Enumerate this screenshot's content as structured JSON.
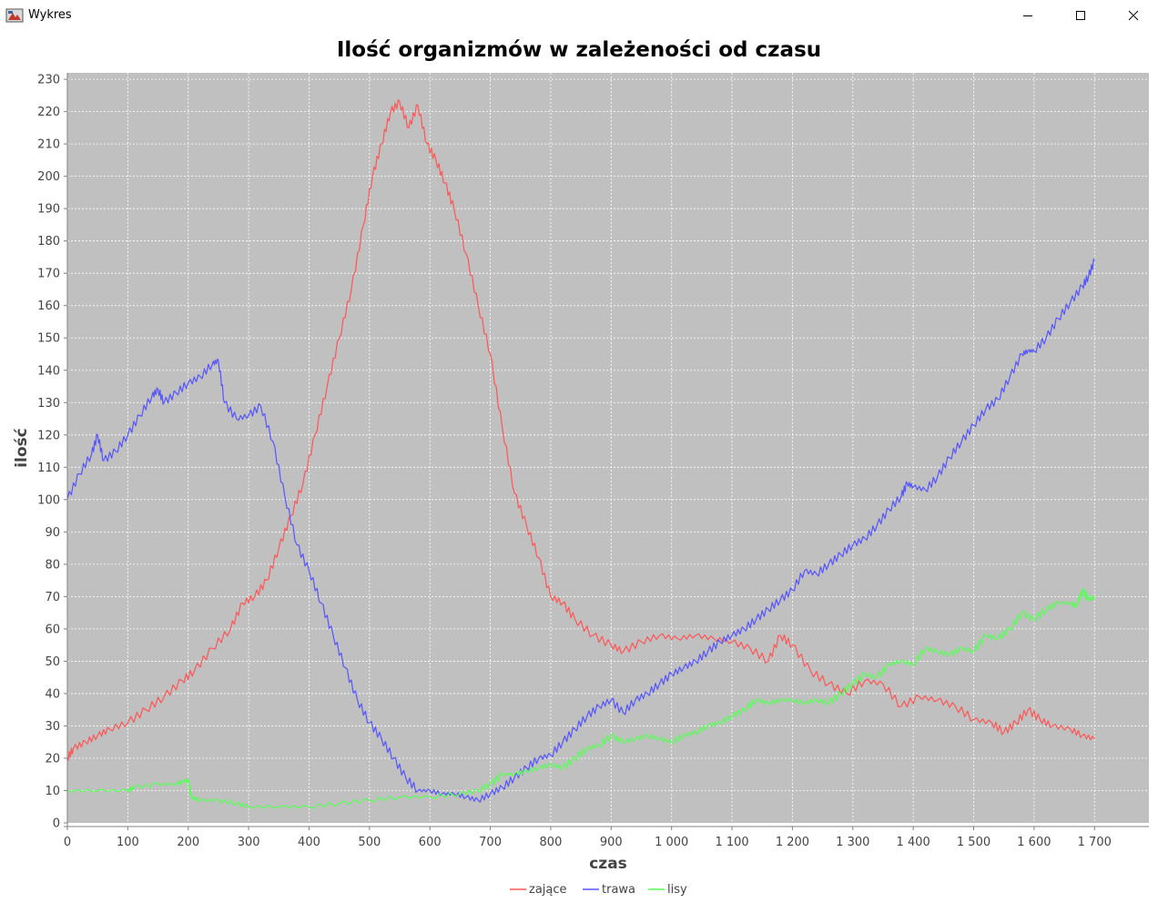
{
  "window": {
    "title": "Wykres",
    "icon": "java-app-icon",
    "controls": [
      "minimize-icon",
      "maximize-icon",
      "close-icon"
    ]
  },
  "colors": {
    "plot_background": "#c0c0c0",
    "gridline": "#ffffff",
    "zajace": "#ff5555",
    "trawa": "#5555ff",
    "lisy": "#55ff55"
  },
  "chart_data": {
    "type": "line",
    "title": "Ilość organizmów w zależeności od czasu",
    "xlabel": "czas",
    "ylabel": "ilość",
    "xlim": [
      0,
      1790
    ],
    "ylim": [
      0,
      232
    ],
    "x_ticks": [
      0,
      100,
      200,
      300,
      400,
      500,
      600,
      700,
      800,
      900,
      1000,
      1100,
      1200,
      1300,
      1400,
      1500,
      1600,
      1700
    ],
    "x_tick_labels": [
      "0",
      "100",
      "200",
      "300",
      "400",
      "500",
      "600",
      "700",
      "800",
      "900",
      "1 000",
      "1 100",
      "1 200",
      "1 300",
      "1 400",
      "1 500",
      "1 600",
      "1 700"
    ],
    "y_ticks": [
      0,
      10,
      20,
      30,
      40,
      50,
      60,
      70,
      80,
      90,
      100,
      110,
      120,
      130,
      140,
      150,
      160,
      170,
      180,
      190,
      200,
      210,
      220,
      230
    ],
    "y_tick_labels": [
      "0",
      "10",
      "20",
      "30",
      "40",
      "50",
      "60",
      "70",
      "80",
      "90",
      "100",
      "110",
      "120",
      "130",
      "140",
      "150",
      "160",
      "170",
      "180",
      "190",
      "200",
      "210",
      "220",
      "230"
    ],
    "grid": true,
    "legend_position": "bottom-center",
    "series": [
      {
        "name": "zające",
        "color": "#ff5555",
        "points": [
          [
            0,
            20
          ],
          [
            10,
            23
          ],
          [
            30,
            25
          ],
          [
            50,
            27
          ],
          [
            70,
            29
          ],
          [
            100,
            31
          ],
          [
            130,
            35
          ],
          [
            160,
            39
          ],
          [
            190,
            44
          ],
          [
            210,
            47
          ],
          [
            240,
            54
          ],
          [
            270,
            60
          ],
          [
            290,
            68
          ],
          [
            310,
            70
          ],
          [
            330,
            75
          ],
          [
            350,
            85
          ],
          [
            370,
            95
          ],
          [
            390,
            105
          ],
          [
            410,
            120
          ],
          [
            430,
            135
          ],
          [
            450,
            150
          ],
          [
            470,
            165
          ],
          [
            490,
            185
          ],
          [
            505,
            200
          ],
          [
            520,
            210
          ],
          [
            535,
            220
          ],
          [
            550,
            223
          ],
          [
            565,
            215
          ],
          [
            580,
            222
          ],
          [
            595,
            210
          ],
          [
            610,
            205
          ],
          [
            625,
            198
          ],
          [
            640,
            190
          ],
          [
            660,
            176
          ],
          [
            680,
            160
          ],
          [
            700,
            145
          ],
          [
            720,
            122
          ],
          [
            740,
            102
          ],
          [
            760,
            92
          ],
          [
            780,
            82
          ],
          [
            800,
            70
          ],
          [
            820,
            68
          ],
          [
            840,
            63
          ],
          [
            870,
            58
          ],
          [
            900,
            55
          ],
          [
            920,
            53
          ],
          [
            950,
            56
          ],
          [
            980,
            58
          ],
          [
            1010,
            57
          ],
          [
            1040,
            58
          ],
          [
            1070,
            57
          ],
          [
            1100,
            56
          ],
          [
            1130,
            54
          ],
          [
            1160,
            50
          ],
          [
            1180,
            58
          ],
          [
            1200,
            55
          ],
          [
            1230,
            47
          ],
          [
            1260,
            43
          ],
          [
            1290,
            40
          ],
          [
            1320,
            44
          ],
          [
            1350,
            43
          ],
          [
            1380,
            36
          ],
          [
            1410,
            39
          ],
          [
            1440,
            38
          ],
          [
            1470,
            36
          ],
          [
            1500,
            32
          ],
          [
            1530,
            31
          ],
          [
            1550,
            28
          ],
          [
            1570,
            31
          ],
          [
            1590,
            35
          ],
          [
            1610,
            32
          ],
          [
            1630,
            30
          ],
          [
            1660,
            29
          ],
          [
            1680,
            27
          ],
          [
            1700,
            26
          ]
        ]
      },
      {
        "name": "trawa",
        "color": "#5555ff",
        "points": [
          [
            0,
            100
          ],
          [
            20,
            108
          ],
          [
            40,
            114
          ],
          [
            50,
            120
          ],
          [
            60,
            112
          ],
          [
            80,
            115
          ],
          [
            100,
            120
          ],
          [
            120,
            126
          ],
          [
            140,
            132
          ],
          [
            150,
            134
          ],
          [
            160,
            130
          ],
          [
            180,
            133
          ],
          [
            200,
            136
          ],
          [
            220,
            138
          ],
          [
            240,
            142
          ],
          [
            250,
            143
          ],
          [
            260,
            130
          ],
          [
            280,
            125
          ],
          [
            300,
            126
          ],
          [
            320,
            129
          ],
          [
            340,
            118
          ],
          [
            360,
            101
          ],
          [
            380,
            86
          ],
          [
            400,
            78
          ],
          [
            420,
            68
          ],
          [
            440,
            58
          ],
          [
            460,
            48
          ],
          [
            480,
            38
          ],
          [
            500,
            31
          ],
          [
            520,
            26
          ],
          [
            540,
            20
          ],
          [
            560,
            14
          ],
          [
            580,
            10
          ],
          [
            600,
            10
          ],
          [
            620,
            9
          ],
          [
            640,
            9
          ],
          [
            660,
            8
          ],
          [
            680,
            7
          ],
          [
            700,
            9
          ],
          [
            720,
            11
          ],
          [
            740,
            14
          ],
          [
            760,
            17
          ],
          [
            780,
            20
          ],
          [
            800,
            21
          ],
          [
            820,
            25
          ],
          [
            840,
            29
          ],
          [
            860,
            33
          ],
          [
            880,
            36
          ],
          [
            900,
            38
          ],
          [
            920,
            34
          ],
          [
            940,
            38
          ],
          [
            960,
            40
          ],
          [
            980,
            43
          ],
          [
            1000,
            46
          ],
          [
            1020,
            48
          ],
          [
            1040,
            50
          ],
          [
            1060,
            53
          ],
          [
            1080,
            56
          ],
          [
            1100,
            58
          ],
          [
            1120,
            60
          ],
          [
            1140,
            63
          ],
          [
            1160,
            66
          ],
          [
            1180,
            69
          ],
          [
            1200,
            72
          ],
          [
            1220,
            78
          ],
          [
            1240,
            77
          ],
          [
            1260,
            80
          ],
          [
            1280,
            83
          ],
          [
            1300,
            86
          ],
          [
            1320,
            88
          ],
          [
            1340,
            92
          ],
          [
            1360,
            97
          ],
          [
            1380,
            101
          ],
          [
            1390,
            105
          ],
          [
            1400,
            104
          ],
          [
            1420,
            103
          ],
          [
            1440,
            107
          ],
          [
            1460,
            113
          ],
          [
            1480,
            118
          ],
          [
            1500,
            123
          ],
          [
            1520,
            128
          ],
          [
            1540,
            131
          ],
          [
            1560,
            138
          ],
          [
            1580,
            145
          ],
          [
            1590,
            146
          ],
          [
            1600,
            146
          ],
          [
            1620,
            150
          ],
          [
            1640,
            156
          ],
          [
            1660,
            161
          ],
          [
            1680,
            166
          ],
          [
            1690,
            169
          ],
          [
            1700,
            174
          ]
        ]
      },
      {
        "name": "lisy",
        "color": "#55ff55",
        "points": [
          [
            0,
            10
          ],
          [
            50,
            10
          ],
          [
            100,
            10
          ],
          [
            110,
            11
          ],
          [
            150,
            12
          ],
          [
            180,
            12
          ],
          [
            195,
            13
          ],
          [
            200,
            13
          ],
          [
            205,
            8
          ],
          [
            220,
            7
          ],
          [
            250,
            7
          ],
          [
            280,
            6
          ],
          [
            300,
            5
          ],
          [
            350,
            5
          ],
          [
            400,
            5
          ],
          [
            450,
            6
          ],
          [
            500,
            7
          ],
          [
            550,
            8
          ],
          [
            600,
            8
          ],
          [
            650,
            9
          ],
          [
            680,
            10
          ],
          [
            700,
            12
          ],
          [
            720,
            15
          ],
          [
            740,
            15
          ],
          [
            760,
            16
          ],
          [
            780,
            17
          ],
          [
            800,
            18
          ],
          [
            820,
            17
          ],
          [
            840,
            20
          ],
          [
            860,
            23
          ],
          [
            880,
            24
          ],
          [
            900,
            27
          ],
          [
            920,
            25
          ],
          [
            940,
            26
          ],
          [
            960,
            27
          ],
          [
            980,
            26
          ],
          [
            1000,
            25
          ],
          [
            1020,
            27
          ],
          [
            1040,
            28
          ],
          [
            1060,
            30
          ],
          [
            1080,
            31
          ],
          [
            1100,
            33
          ],
          [
            1120,
            35
          ],
          [
            1140,
            38
          ],
          [
            1160,
            37
          ],
          [
            1180,
            38
          ],
          [
            1200,
            38
          ],
          [
            1220,
            37
          ],
          [
            1240,
            38
          ],
          [
            1260,
            37
          ],
          [
            1280,
            40
          ],
          [
            1300,
            43
          ],
          [
            1320,
            46
          ],
          [
            1340,
            45
          ],
          [
            1360,
            49
          ],
          [
            1380,
            50
          ],
          [
            1400,
            49
          ],
          [
            1420,
            54
          ],
          [
            1440,
            53
          ],
          [
            1460,
            52
          ],
          [
            1480,
            54
          ],
          [
            1500,
            53
          ],
          [
            1520,
            58
          ],
          [
            1540,
            57
          ],
          [
            1560,
            60
          ],
          [
            1580,
            65
          ],
          [
            1600,
            63
          ],
          [
            1620,
            66
          ],
          [
            1640,
            68
          ],
          [
            1660,
            68
          ],
          [
            1670,
            67
          ],
          [
            1680,
            72
          ],
          [
            1690,
            69
          ],
          [
            1700,
            70
          ]
        ]
      }
    ]
  }
}
